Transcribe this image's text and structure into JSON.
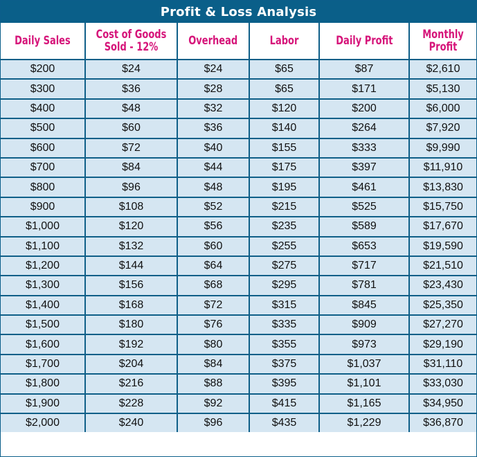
{
  "title": "Profit & Loss Analysis",
  "columns": [
    "Daily Sales",
    "Cost of Goods Sold - 12%",
    "Overhead",
    "Labor",
    "Daily Profit",
    "Monthly Profit"
  ],
  "rows": [
    [
      "$200",
      "$24",
      "$24",
      "$65",
      "$87",
      "$2,610"
    ],
    [
      "$300",
      "$36",
      "$28",
      "$65",
      "$171",
      "$5,130"
    ],
    [
      "$400",
      "$48",
      "$32",
      "$120",
      "$200",
      "$6,000"
    ],
    [
      "$500",
      "$60",
      "$36",
      "$140",
      "$264",
      "$7,920"
    ],
    [
      "$600",
      "$72",
      "$40",
      "$155",
      "$333",
      "$9,990"
    ],
    [
      "$700",
      "$84",
      "$44",
      "$175",
      "$397",
      "$11,910"
    ],
    [
      "$800",
      "$96",
      "$48",
      "$195",
      "$461",
      "$13,830"
    ],
    [
      "$900",
      "$108",
      "$52",
      "$215",
      "$525",
      "$15,750"
    ],
    [
      "$1,000",
      "$120",
      "$56",
      "$235",
      "$589",
      "$17,670"
    ],
    [
      "$1,100",
      "$132",
      "$60",
      "$255",
      "$653",
      "$19,590"
    ],
    [
      "$1,200",
      "$144",
      "$64",
      "$275",
      "$717",
      "$21,510"
    ],
    [
      "$1,300",
      "$156",
      "$68",
      "$295",
      "$781",
      "$23,430"
    ],
    [
      "$1,400",
      "$168",
      "$72",
      "$315",
      "$845",
      "$25,350"
    ],
    [
      "$1,500",
      "$180",
      "$76",
      "$335",
      "$909",
      "$27,270"
    ],
    [
      "$1,600",
      "$192",
      "$80",
      "$355",
      "$973",
      "$29,190"
    ],
    [
      "$1,700",
      "$204",
      "$84",
      "$375",
      "$1,037",
      "$31,110"
    ],
    [
      "$1,800",
      "$216",
      "$88",
      "$395",
      "$1,101",
      "$33,030"
    ],
    [
      "$1,900",
      "$228",
      "$92",
      "$415",
      "$1,165",
      "$34,950"
    ],
    [
      "$2,000",
      "$240",
      "$96",
      "$435",
      "$1,229",
      "$36,870"
    ]
  ],
  "colors": {
    "title_bg": "#0a5f89",
    "header_text": "#d6157a",
    "cell_bg": "#d5e6f2",
    "border": "#0f5f88"
  }
}
